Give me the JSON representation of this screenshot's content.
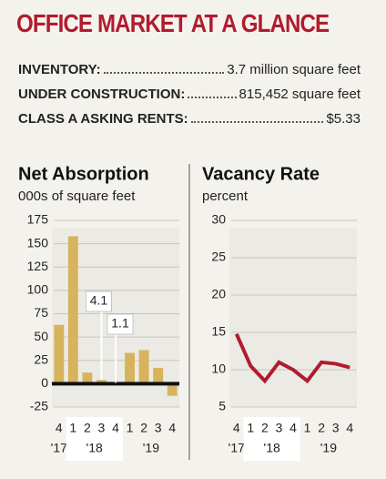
{
  "header": {
    "title": "OFFICE MARKET AT A GLANCE"
  },
  "stats": [
    {
      "label": "INVENTORY:",
      "value": "3.7 million square feet"
    },
    {
      "label": "UNDER CONSTRUCTION:",
      "value": "815,452 square feet"
    },
    {
      "label": "CLASS A ASKING RENTS:",
      "value": "$5.33"
    }
  ],
  "chart_data": [
    {
      "type": "bar",
      "title": "Net Absorption",
      "subtitle": "000s of square feet",
      "categories": [
        "4",
        "1",
        "2",
        "3",
        "4",
        "1",
        "2",
        "3",
        "4"
      ],
      "years": [
        "'17",
        "'18",
        null,
        null,
        null,
        "'19",
        null,
        null,
        null
      ],
      "values": [
        63,
        158,
        12,
        4.1,
        1.1,
        33,
        36,
        17,
        -13
      ],
      "value_labels": [
        null,
        null,
        null,
        "4.1",
        "1.1",
        null,
        null,
        null,
        null
      ],
      "color": "#d6b35c",
      "ylim": [
        -25,
        175
      ],
      "yticks": [
        -25,
        0,
        25,
        50,
        75,
        100,
        125,
        150,
        175
      ],
      "grid": true
    },
    {
      "type": "line",
      "title": "Vacancy Rate",
      "subtitle": "percent",
      "categories": [
        "4",
        "1",
        "2",
        "3",
        "4",
        "1",
        "2",
        "3",
        "4"
      ],
      "years": [
        "'17",
        "'18",
        null,
        null,
        null,
        "'19",
        null,
        null,
        null
      ],
      "values": [
        14.8,
        10.5,
        8.5,
        11,
        10,
        8.5,
        11,
        10.8,
        10.3
      ],
      "color": "#b01c2e",
      "ylim": [
        5,
        30
      ],
      "yticks": [
        5,
        10,
        15,
        20,
        25,
        30
      ],
      "grid": true
    }
  ]
}
